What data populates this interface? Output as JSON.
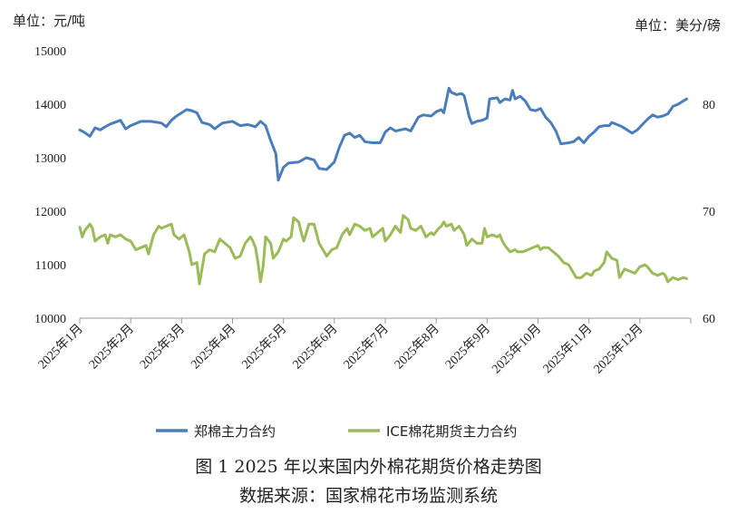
{
  "units": {
    "left": "单位：元/吨",
    "right": "单位：美分/磅"
  },
  "caption": {
    "title": "图 1    2025 年以来国内外棉花期货价格走势图",
    "source": "数据来源：国家棉花市场监测系统"
  },
  "colors": {
    "series1": "#4a7ebb",
    "series2": "#9bbb59"
  },
  "chart_data": {
    "type": "line",
    "x_labels": [
      "2025年1月",
      "2025年2月",
      "2025年3月",
      "2025年4月",
      "2025年5月",
      "2025年6月",
      "2025年7月",
      "2025年8月",
      "2025年9月",
      "2025年10月",
      "2025年11月",
      "2025年12月"
    ],
    "y_left": {
      "min": 10000,
      "max": 15000,
      "ticks": [
        10000,
        11000,
        12000,
        13000,
        14000,
        15000
      ]
    },
    "y_right": {
      "min": 60,
      "max": 85,
      "ticks": [
        60,
        70,
        80
      ]
    },
    "legend_position": "bottom",
    "series": [
      {
        "name": "郑棉主力合约",
        "axis": "left",
        "color": "#4a7ebb",
        "values": [
          [
            0.0,
            13520
          ],
          [
            0.1,
            13470
          ],
          [
            0.2,
            13400
          ],
          [
            0.3,
            13560
          ],
          [
            0.4,
            13520
          ],
          [
            0.5,
            13580
          ],
          [
            0.6,
            13630
          ],
          [
            0.8,
            13700
          ],
          [
            0.9,
            13540
          ],
          [
            1.0,
            13600
          ],
          [
            1.2,
            13680
          ],
          [
            1.4,
            13680
          ],
          [
            1.6,
            13650
          ],
          [
            1.7,
            13580
          ],
          [
            1.8,
            13700
          ],
          [
            1.9,
            13780
          ],
          [
            2.1,
            13900
          ],
          [
            2.2,
            13880
          ],
          [
            2.3,
            13840
          ],
          [
            2.4,
            13660
          ],
          [
            2.55,
            13620
          ],
          [
            2.65,
            13540
          ],
          [
            2.8,
            13650
          ],
          [
            3.0,
            13680
          ],
          [
            3.15,
            13600
          ],
          [
            3.3,
            13620
          ],
          [
            3.45,
            13580
          ],
          [
            3.55,
            13680
          ],
          [
            3.65,
            13600
          ],
          [
            3.75,
            13320
          ],
          [
            3.85,
            13080
          ],
          [
            3.9,
            12580
          ],
          [
            4.0,
            12820
          ],
          [
            4.1,
            12900
          ],
          [
            4.3,
            12920
          ],
          [
            4.45,
            13000
          ],
          [
            4.6,
            12960
          ],
          [
            4.7,
            12800
          ],
          [
            4.85,
            12780
          ],
          [
            5.0,
            12920
          ],
          [
            5.1,
            13200
          ],
          [
            5.2,
            13420
          ],
          [
            5.3,
            13460
          ],
          [
            5.4,
            13380
          ],
          [
            5.5,
            13420
          ],
          [
            5.6,
            13300
          ],
          [
            5.75,
            13280
          ],
          [
            5.9,
            13280
          ],
          [
            6.0,
            13480
          ],
          [
            6.1,
            13560
          ],
          [
            6.2,
            13500
          ],
          [
            6.3,
            13520
          ],
          [
            6.4,
            13540
          ],
          [
            6.5,
            13500
          ],
          [
            6.65,
            13760
          ],
          [
            6.75,
            13800
          ],
          [
            6.9,
            13780
          ],
          [
            7.0,
            13860
          ],
          [
            7.1,
            13900
          ],
          [
            7.15,
            13840
          ],
          [
            7.25,
            14300
          ],
          [
            7.3,
            14220
          ],
          [
            7.4,
            14180
          ],
          [
            7.5,
            14200
          ],
          [
            7.55,
            14160
          ],
          [
            7.65,
            13760
          ],
          [
            7.7,
            13640
          ],
          [
            7.8,
            13680
          ],
          [
            7.9,
            13700
          ],
          [
            8.0,
            13740
          ],
          [
            8.05,
            14100
          ],
          [
            8.2,
            14120
          ],
          [
            8.25,
            14030
          ],
          [
            8.35,
            14100
          ],
          [
            8.45,
            14080
          ],
          [
            8.5,
            14260
          ],
          [
            8.55,
            14100
          ],
          [
            8.65,
            14150
          ],
          [
            8.75,
            14060
          ],
          [
            8.85,
            13900
          ],
          [
            8.95,
            13880
          ],
          [
            9.05,
            13920
          ],
          [
            9.15,
            13760
          ],
          [
            9.25,
            13660
          ],
          [
            9.35,
            13500
          ],
          [
            9.45,
            13260
          ],
          [
            9.6,
            13280
          ],
          [
            9.7,
            13300
          ],
          [
            9.8,
            13380
          ],
          [
            9.9,
            13280
          ],
          [
            10.0,
            13400
          ],
          [
            10.1,
            13480
          ],
          [
            10.2,
            13580
          ],
          [
            10.3,
            13600
          ],
          [
            10.4,
            13600
          ],
          [
            10.45,
            13660
          ],
          [
            10.55,
            13620
          ],
          [
            10.65,
            13580
          ],
          [
            10.75,
            13520
          ],
          [
            10.85,
            13460
          ],
          [
            10.95,
            13520
          ],
          [
            11.05,
            13620
          ],
          [
            11.15,
            13720
          ],
          [
            11.25,
            13800
          ],
          [
            11.35,
            13760
          ],
          [
            11.45,
            13780
          ],
          [
            11.55,
            13820
          ],
          [
            11.65,
            13960
          ],
          [
            11.75,
            14000
          ],
          [
            11.85,
            14060
          ],
          [
            11.92,
            14100
          ]
        ]
      },
      {
        "name": "ICE棉花期货主力合约",
        "axis": "right",
        "color": "#9bbb59",
        "values": [
          [
            0.0,
            68.5
          ],
          [
            0.05,
            67.6
          ],
          [
            0.1,
            68.2
          ],
          [
            0.2,
            68.8
          ],
          [
            0.25,
            68.4
          ],
          [
            0.3,
            67.2
          ],
          [
            0.4,
            67.6
          ],
          [
            0.5,
            67.8
          ],
          [
            0.55,
            67.0
          ],
          [
            0.6,
            67.8
          ],
          [
            0.7,
            67.6
          ],
          [
            0.8,
            67.8
          ],
          [
            0.9,
            67.4
          ],
          [
            1.0,
            67.2
          ],
          [
            1.1,
            66.4
          ],
          [
            1.2,
            66.6
          ],
          [
            1.3,
            66.8
          ],
          [
            1.35,
            66.0
          ],
          [
            1.45,
            67.8
          ],
          [
            1.55,
            68.6
          ],
          [
            1.6,
            68.4
          ],
          [
            1.7,
            68.6
          ],
          [
            1.8,
            68.8
          ],
          [
            1.85,
            67.8
          ],
          [
            1.95,
            67.4
          ],
          [
            2.05,
            67.8
          ],
          [
            2.15,
            66.2
          ],
          [
            2.2,
            65.0
          ],
          [
            2.3,
            65.2
          ],
          [
            2.35,
            63.2
          ],
          [
            2.45,
            66.0
          ],
          [
            2.55,
            66.4
          ],
          [
            2.65,
            66.2
          ],
          [
            2.75,
            67.4
          ],
          [
            2.85,
            67.0
          ],
          [
            2.95,
            66.6
          ],
          [
            3.05,
            65.6
          ],
          [
            3.15,
            65.8
          ],
          [
            3.25,
            67.0
          ],
          [
            3.35,
            67.6
          ],
          [
            3.4,
            67.2
          ],
          [
            3.45,
            66.6
          ],
          [
            3.5,
            65.2
          ],
          [
            3.55,
            63.4
          ],
          [
            3.6,
            64.8
          ],
          [
            3.65,
            67.6
          ],
          [
            3.75,
            67.0
          ],
          [
            3.8,
            65.6
          ],
          [
            3.9,
            66.2
          ],
          [
            4.0,
            67.4
          ],
          [
            4.05,
            67.2
          ],
          [
            4.15,
            67.6
          ],
          [
            4.2,
            69.4
          ],
          [
            4.3,
            69.0
          ],
          [
            4.35,
            68.0
          ],
          [
            4.4,
            67.2
          ],
          [
            4.5,
            68.8
          ],
          [
            4.6,
            68.8
          ],
          [
            4.7,
            67.0
          ],
          [
            4.8,
            66.2
          ],
          [
            4.85,
            65.8
          ],
          [
            4.95,
            66.4
          ],
          [
            5.05,
            66.6
          ],
          [
            5.15,
            67.8
          ],
          [
            5.25,
            68.4
          ],
          [
            5.3,
            67.8
          ],
          [
            5.4,
            68.8
          ],
          [
            5.5,
            68.6
          ],
          [
            5.6,
            68.2
          ],
          [
            5.7,
            68.4
          ],
          [
            5.75,
            67.6
          ],
          [
            5.85,
            68.0
          ],
          [
            5.95,
            68.4
          ],
          [
            6.0,
            67.2
          ],
          [
            6.1,
            67.8
          ],
          [
            6.2,
            68.6
          ],
          [
            6.3,
            68.0
          ],
          [
            6.35,
            69.6
          ],
          [
            6.45,
            69.2
          ],
          [
            6.5,
            68.4
          ],
          [
            6.6,
            68.2
          ],
          [
            6.7,
            68.6
          ],
          [
            6.8,
            67.6
          ],
          [
            6.9,
            68.0
          ],
          [
            6.95,
            67.8
          ],
          [
            7.05,
            68.4
          ],
          [
            7.1,
            68.6
          ],
          [
            7.15,
            69.0
          ],
          [
            7.2,
            68.6
          ],
          [
            7.3,
            68.8
          ],
          [
            7.35,
            68.2
          ],
          [
            7.45,
            68.6
          ],
          [
            7.5,
            68.2
          ],
          [
            7.55,
            67.8
          ],
          [
            7.6,
            66.8
          ],
          [
            7.7,
            67.4
          ],
          [
            7.8,
            67.0
          ],
          [
            7.9,
            67.0
          ],
          [
            7.95,
            68.4
          ],
          [
            8.0,
            67.6
          ],
          [
            8.1,
            67.8
          ],
          [
            8.2,
            67.6
          ],
          [
            8.25,
            67.8
          ],
          [
            8.3,
            67.2
          ],
          [
            8.35,
            66.8
          ],
          [
            8.45,
            66.2
          ],
          [
            8.55,
            66.4
          ],
          [
            8.6,
            66.2
          ],
          [
            8.7,
            66.2
          ],
          [
            8.8,
            66.4
          ],
          [
            8.9,
            66.6
          ],
          [
            9.0,
            66.8
          ],
          [
            9.05,
            66.4
          ],
          [
            9.1,
            66.6
          ],
          [
            9.2,
            66.6
          ],
          [
            9.3,
            66.2
          ],
          [
            9.4,
            65.8
          ],
          [
            9.5,
            65.2
          ],
          [
            9.6,
            65.0
          ],
          [
            9.7,
            64.2
          ],
          [
            9.75,
            63.8
          ],
          [
            9.85,
            63.8
          ],
          [
            9.95,
            64.2
          ],
          [
            10.05,
            64.0
          ],
          [
            10.1,
            64.4
          ],
          [
            10.2,
            64.6
          ],
          [
            10.3,
            65.2
          ],
          [
            10.35,
            66.2
          ],
          [
            10.45,
            65.6
          ],
          [
            10.55,
            65.4
          ],
          [
            10.6,
            63.8
          ],
          [
            10.7,
            64.6
          ],
          [
            10.8,
            64.4
          ],
          [
            10.9,
            64.2
          ],
          [
            11.0,
            64.8
          ],
          [
            11.1,
            65.0
          ],
          [
            11.15,
            64.8
          ],
          [
            11.25,
            64.2
          ],
          [
            11.35,
            64.0
          ],
          [
            11.45,
            64.2
          ],
          [
            11.5,
            64.0
          ],
          [
            11.55,
            63.4
          ],
          [
            11.65,
            63.8
          ],
          [
            11.75,
            63.6
          ],
          [
            11.85,
            63.8
          ],
          [
            11.92,
            63.7
          ]
        ]
      }
    ]
  }
}
